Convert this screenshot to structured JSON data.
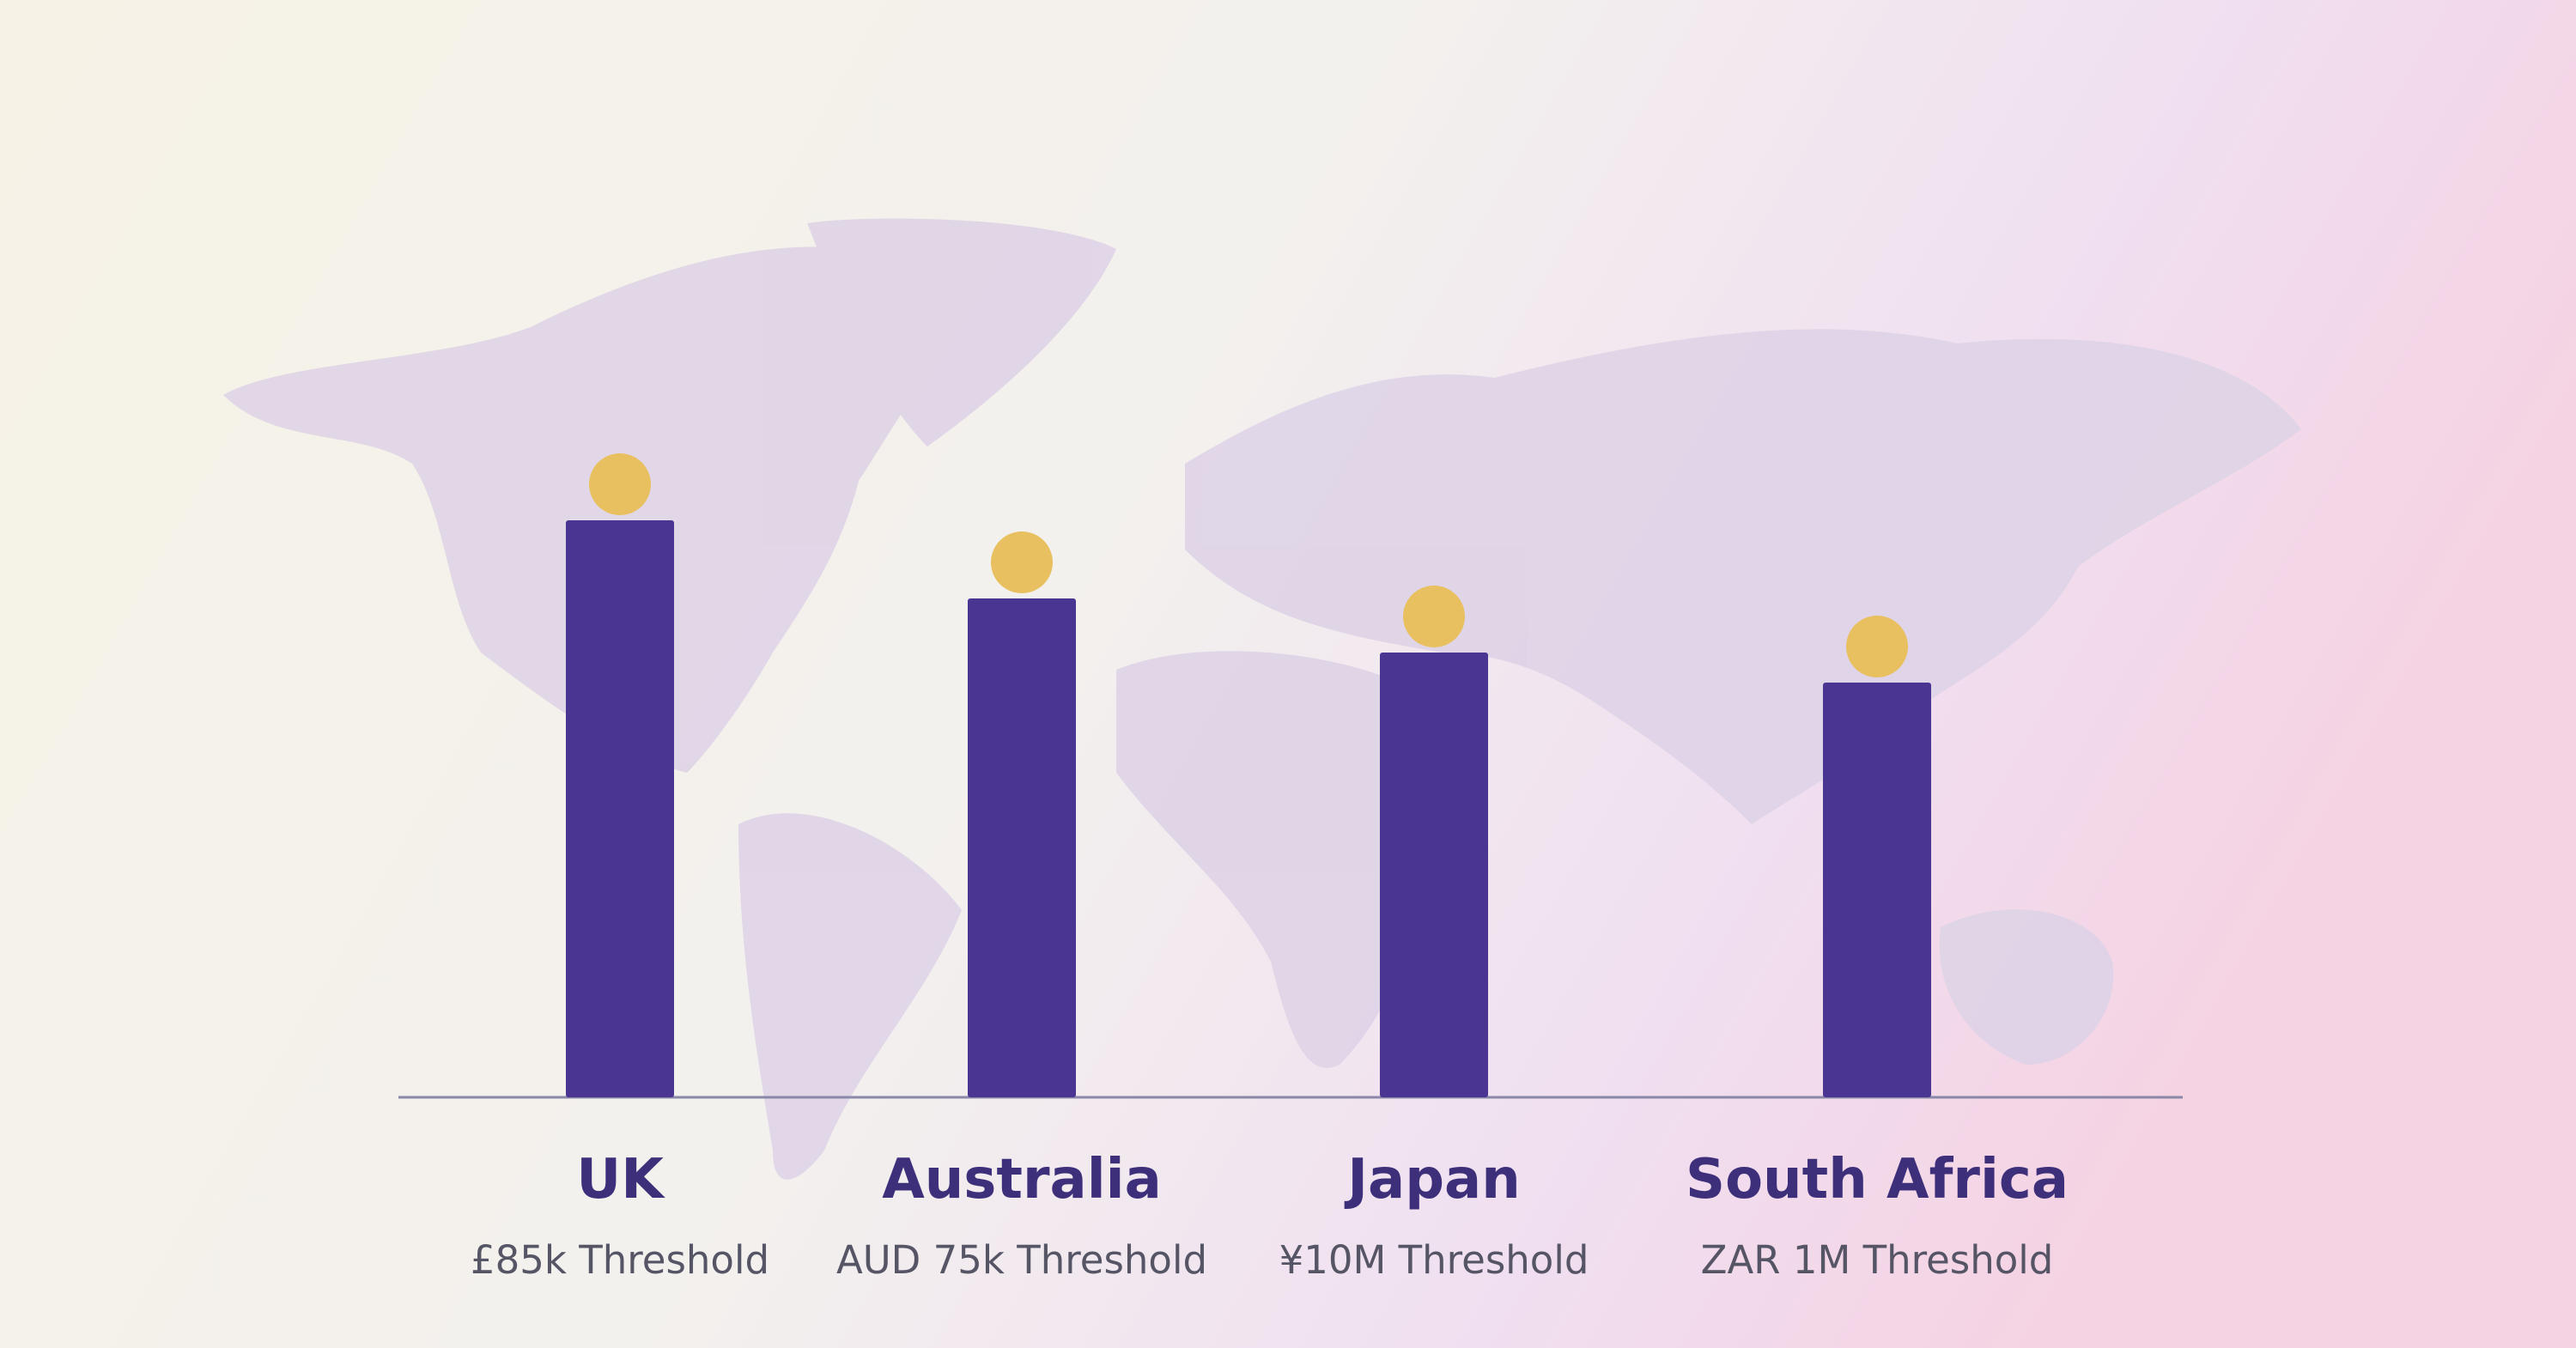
{
  "chart_data": {
    "type": "bar",
    "categories": [
      "UK",
      "Australia",
      "Japan",
      "South Africa"
    ],
    "threshold_labels": [
      "£85k Threshold",
      "AUD 75k Threshold",
      "¥10M Threshold",
      "ZAR 1M Threshold"
    ],
    "values": [
      96,
      83,
      74,
      69
    ],
    "ylim": [
      0,
      100
    ],
    "color": "#4b3592",
    "marker_color": "#e8c060"
  }
}
